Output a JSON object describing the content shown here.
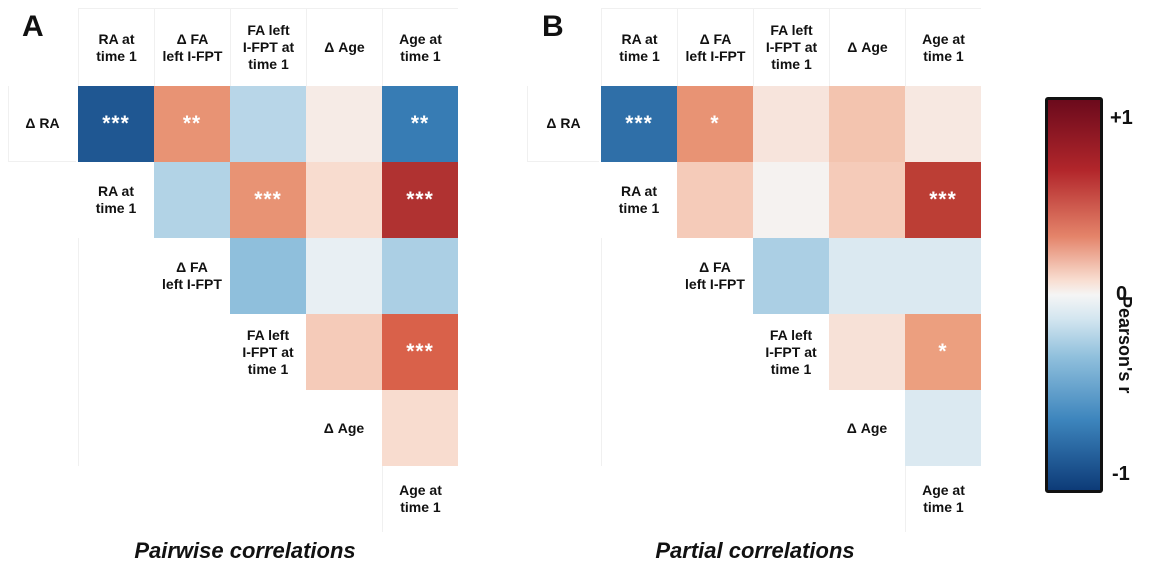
{
  "chart_data": [
    {
      "type": "heatmap",
      "panel": "A",
      "title": "Pairwise correlations",
      "columns": [
        "RA at\ntime 1",
        "Δ FA\nleft I-FPT",
        "FA left\nI-FPT at\ntime 1",
        "Δ Age",
        "Age at\ntime 1"
      ],
      "rows": [
        "Δ RA",
        "RA at\ntime 1",
        "Δ FA\nleft I-FPT",
        "FA left\nI-FPT at\ntime 1",
        "Δ Age"
      ],
      "values": [
        [
          -0.85,
          0.45,
          -0.18,
          0.06,
          -0.65
        ],
        [
          null,
          -0.2,
          0.45,
          0.15,
          0.85
        ],
        [
          null,
          null,
          -0.3,
          -0.04,
          -0.22
        ],
        [
          null,
          null,
          null,
          0.22,
          0.65
        ],
        [
          null,
          null,
          null,
          null,
          0.15
        ]
      ],
      "significance": [
        [
          "***",
          "**",
          "",
          "",
          "**"
        ],
        [
          null,
          "",
          "***",
          "",
          "***"
        ],
        [
          null,
          null,
          "",
          "",
          ""
        ],
        [
          null,
          null,
          null,
          "",
          "***"
        ],
        [
          null,
          null,
          null,
          null,
          ""
        ]
      ],
      "footer_label": null
    },
    {
      "type": "heatmap",
      "panel": "B",
      "title": "Partial correlations",
      "columns": [
        "RA at\ntime 1",
        "Δ FA\nleft I-FPT",
        "FA left\nI-FPT at\ntime 1",
        "Δ Age",
        "Age at\ntime 1"
      ],
      "rows": [
        "Δ RA",
        "RA at\ntime 1",
        "Δ FA\nleft I-FPT",
        "FA left\nI-FPT at\ntime 1",
        "Δ Age"
      ],
      "values": [
        [
          -0.72,
          0.45,
          0.1,
          0.25,
          0.08
        ],
        [
          null,
          0.22,
          0.02,
          0.22,
          0.8
        ],
        [
          null,
          null,
          -0.22,
          -0.08,
          -0.08
        ],
        [
          null,
          null,
          null,
          0.12,
          0.4
        ],
        [
          null,
          null,
          null,
          null,
          -0.08
        ]
      ],
      "significance": [
        [
          "***",
          "*",
          "",
          "",
          ""
        ],
        [
          null,
          "",
          "",
          "",
          "***"
        ],
        [
          null,
          null,
          "",
          "",
          ""
        ],
        [
          null,
          null,
          null,
          "",
          "*"
        ],
        [
          null,
          null,
          null,
          null,
          ""
        ]
      ],
      "footer_label": "Age at\ntime 1"
    }
  ],
  "colorbar": {
    "label": "Pearson's r",
    "max_label": "+1",
    "mid_label": "0",
    "min_label": "-1",
    "range": [
      -1,
      1
    ]
  },
  "colors": {
    "neg": "#0d3b78",
    "pos": "#6b0a1c",
    "zero": "#f5f5f5"
  }
}
